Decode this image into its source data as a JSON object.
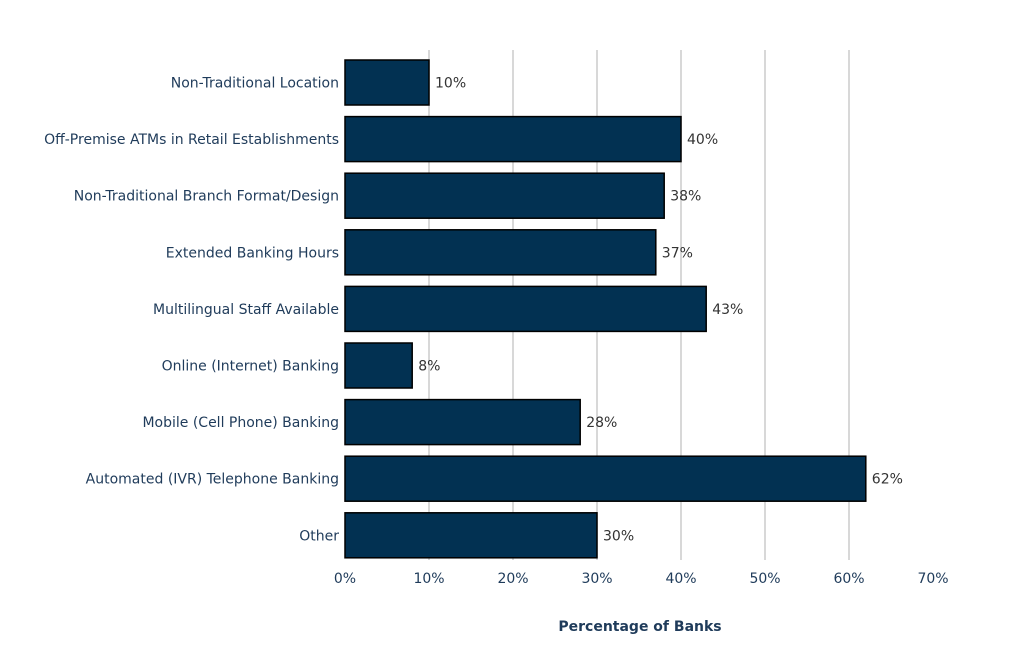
{
  "chart_data": {
    "type": "bar",
    "orientation": "horizontal",
    "title": "",
    "xlabel": "Percentage of Banks",
    "ylabel": "",
    "xlim": [
      0,
      70
    ],
    "grid": true,
    "categories": [
      "Non-Traditional Location",
      "Off-Premise ATMs in Retail Establishments",
      "Non-Traditional Branch Format/Design",
      "Extended Banking Hours",
      "Multilingual Staff Available",
      "Online (Internet) Banking",
      "Mobile (Cell Phone) Banking",
      "Automated (IVR) Telephone Banking",
      "Other"
    ],
    "values": [
      10,
      40,
      38,
      37,
      43,
      8,
      28,
      62,
      30
    ],
    "value_labels": [
      "10%",
      "40%",
      "38%",
      "37%",
      "43%",
      "8%",
      "28%",
      "62%",
      "30%"
    ],
    "tick_values": [
      0,
      10,
      20,
      30,
      40,
      50,
      60,
      70
    ],
    "tick_labels": [
      "0%",
      "10%",
      "20%",
      "30%",
      "40%",
      "50%",
      "60%",
      "70%"
    ],
    "bar_color": "#023152",
    "grid_color": "#cccccc"
  }
}
